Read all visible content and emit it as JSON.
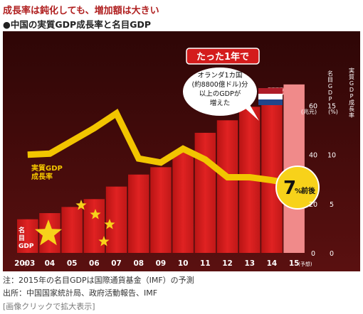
{
  "headline": "成長率は鈍化しても、増加額は大きい",
  "subhead": "●中国の実質GDP成長率と名目GDP",
  "colors": {
    "background": "#3a0a0a",
    "bar": "#d41c1c",
    "bar_forecast": "#f08a8a",
    "line": "#f2c500",
    "badge": "#f7d21a"
  },
  "chart_data": {
    "type": "bar",
    "categories": [
      "2003",
      "04",
      "05",
      "06",
      "07",
      "08",
      "09",
      "10",
      "11",
      "12",
      "13",
      "14",
      "15"
    ],
    "category_suffix_first": "年",
    "forecast_label": "(予想)",
    "series": [
      {
        "name": "名目GDP",
        "axis": "left",
        "unit": "兆元",
        "values": [
          13.7,
          16.2,
          18.7,
          21.9,
          27.0,
          31.9,
          34.9,
          41.3,
          48.9,
          54.0,
          59.5,
          64.4,
          68.6
        ]
      },
      {
        "name": "実質GDP成長率",
        "axis": "right",
        "unit": "%",
        "type": "line",
        "values": [
          10.0,
          10.1,
          11.4,
          12.7,
          14.2,
          9.6,
          9.2,
          10.6,
          9.5,
          7.7,
          7.7,
          7.4,
          7.0
        ]
      }
    ],
    "y_left": {
      "label": "名目GDP",
      "unit": "(兆元)",
      "ticks": [
        "0",
        "20",
        "40",
        "60"
      ],
      "range": [
        0,
        70
      ]
    },
    "y_right": {
      "label": "実質GDP成長率",
      "unit": "(%)",
      "ticks": [
        "0",
        "5",
        "10",
        "15"
      ],
      "range": [
        0,
        17.5
      ]
    },
    "left_bar_label": "名目GDP",
    "line_label": "実質GDP成長率",
    "badge": {
      "value": "7",
      "unit": "%",
      "suffix": "前後"
    },
    "annotation": {
      "title": "たった1年で",
      "lines": [
        "オランダ1カ国",
        "(約8800億ドル)分",
        "以上のGDPが",
        "増えた"
      ]
    }
  },
  "notes": [
    "注：2015年の名目GDPは国際通貨基金（IMF）の予測",
    "出所：中国国家統計局、政府活動報告、IMF"
  ],
  "link_text": "[画像クリックで拡大表示]"
}
